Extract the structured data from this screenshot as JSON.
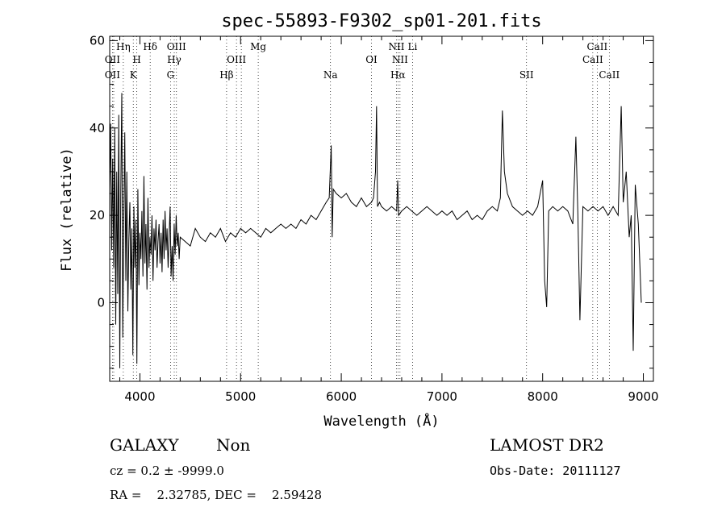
{
  "chart_data": {
    "type": "line",
    "title": "spec-55893-F9302_sp01-201.fits",
    "xlabel": "Wavelength (Å)",
    "ylabel": "Flux (relative)",
    "xlim": [
      3700,
      9100
    ],
    "ylim": [
      -18,
      61
    ],
    "xticks": [
      4000,
      5000,
      6000,
      7000,
      8000,
      9000
    ],
    "yticks": [
      0,
      20,
      40,
      60
    ],
    "grid": false,
    "series": [
      {
        "values": [
          [
            3700,
            26
          ],
          [
            3710,
            41
          ],
          [
            3720,
            12
          ],
          [
            3730,
            33
          ],
          [
            3740,
            8
          ],
          [
            3750,
            40
          ],
          [
            3760,
            -5
          ],
          [
            3770,
            30
          ],
          [
            3780,
            2
          ],
          [
            3790,
            43
          ],
          [
            3800,
            -15
          ],
          [
            3810,
            25
          ],
          [
            3820,
            48
          ],
          [
            3830,
            -8
          ],
          [
            3840,
            20
          ],
          [
            3850,
            39
          ],
          [
            3860,
            5
          ],
          [
            3870,
            30
          ],
          [
            3880,
            -2
          ],
          [
            3890,
            14
          ],
          [
            3900,
            23
          ],
          [
            3910,
            3
          ],
          [
            3920,
            17
          ],
          [
            3930,
            -12
          ],
          [
            3940,
            22
          ],
          [
            3950,
            8
          ],
          [
            3960,
            19
          ],
          [
            3970,
            -14
          ],
          [
            3980,
            26
          ],
          [
            3990,
            4
          ],
          [
            4000,
            16
          ],
          [
            4010,
            10
          ],
          [
            4020,
            21
          ],
          [
            4030,
            6
          ],
          [
            4040,
            29
          ],
          [
            4050,
            9
          ],
          [
            4060,
            18
          ],
          [
            4070,
            3
          ],
          [
            4080,
            24
          ],
          [
            4090,
            8
          ],
          [
            4100,
            15
          ],
          [
            4110,
            11
          ],
          [
            4120,
            20
          ],
          [
            4130,
            5
          ],
          [
            4140,
            17
          ],
          [
            4150,
            12
          ],
          [
            4160,
            19
          ],
          [
            4170,
            8
          ],
          [
            4180,
            14
          ],
          [
            4190,
            18
          ],
          [
            4200,
            9
          ],
          [
            4210,
            16
          ],
          [
            4220,
            7
          ],
          [
            4230,
            19
          ],
          [
            4240,
            10
          ],
          [
            4250,
            21
          ],
          [
            4260,
            12
          ],
          [
            4270,
            17
          ],
          [
            4280,
            8
          ],
          [
            4290,
            15
          ],
          [
            4300,
            22
          ],
          [
            4310,
            6
          ],
          [
            4320,
            13
          ],
          [
            4330,
            5
          ],
          [
            4340,
            18
          ],
          [
            4350,
            11
          ],
          [
            4360,
            20
          ],
          [
            4370,
            13
          ],
          [
            4380,
            16
          ],
          [
            4390,
            10
          ],
          [
            4400,
            15
          ],
          [
            4450,
            14
          ],
          [
            4500,
            13
          ],
          [
            4550,
            17
          ],
          [
            4600,
            15
          ],
          [
            4650,
            14
          ],
          [
            4700,
            16
          ],
          [
            4750,
            15
          ],
          [
            4800,
            17
          ],
          [
            4850,
            14
          ],
          [
            4900,
            16
          ],
          [
            4950,
            15
          ],
          [
            5000,
            17
          ],
          [
            5050,
            16
          ],
          [
            5100,
            17
          ],
          [
            5150,
            16
          ],
          [
            5200,
            15
          ],
          [
            5250,
            17
          ],
          [
            5300,
            16
          ],
          [
            5350,
            17
          ],
          [
            5400,
            18
          ],
          [
            5450,
            17
          ],
          [
            5500,
            18
          ],
          [
            5550,
            17
          ],
          [
            5600,
            19
          ],
          [
            5650,
            18
          ],
          [
            5700,
            20
          ],
          [
            5750,
            19
          ],
          [
            5800,
            21
          ],
          [
            5850,
            23
          ],
          [
            5880,
            24
          ],
          [
            5900,
            36
          ],
          [
            5910,
            15
          ],
          [
            5920,
            26
          ],
          [
            5950,
            25
          ],
          [
            6000,
            24
          ],
          [
            6050,
            25
          ],
          [
            6100,
            23
          ],
          [
            6150,
            22
          ],
          [
            6200,
            24
          ],
          [
            6250,
            22
          ],
          [
            6300,
            23
          ],
          [
            6320,
            24
          ],
          [
            6340,
            30
          ],
          [
            6350,
            45
          ],
          [
            6360,
            22
          ],
          [
            6380,
            23
          ],
          [
            6400,
            22
          ],
          [
            6450,
            21
          ],
          [
            6500,
            22
          ],
          [
            6550,
            21
          ],
          [
            6560,
            28
          ],
          [
            6570,
            20
          ],
          [
            6600,
            21
          ],
          [
            6650,
            22
          ],
          [
            6700,
            21
          ],
          [
            6750,
            20
          ],
          [
            6800,
            21
          ],
          [
            6850,
            22
          ],
          [
            6900,
            21
          ],
          [
            6950,
            20
          ],
          [
            7000,
            21
          ],
          [
            7050,
            20
          ],
          [
            7100,
            21
          ],
          [
            7150,
            19
          ],
          [
            7200,
            20
          ],
          [
            7250,
            21
          ],
          [
            7300,
            19
          ],
          [
            7350,
            20
          ],
          [
            7400,
            19
          ],
          [
            7450,
            21
          ],
          [
            7500,
            22
          ],
          [
            7550,
            21
          ],
          [
            7580,
            24
          ],
          [
            7600,
            44
          ],
          [
            7620,
            30
          ],
          [
            7650,
            25
          ],
          [
            7700,
            22
          ],
          [
            7750,
            21
          ],
          [
            7800,
            20
          ],
          [
            7850,
            21
          ],
          [
            7900,
            20
          ],
          [
            7950,
            22
          ],
          [
            8000,
            28
          ],
          [
            8020,
            5
          ],
          [
            8040,
            -1
          ],
          [
            8060,
            21
          ],
          [
            8100,
            22
          ],
          [
            8150,
            21
          ],
          [
            8200,
            22
          ],
          [
            8250,
            21
          ],
          [
            8300,
            18
          ],
          [
            8330,
            38
          ],
          [
            8350,
            20
          ],
          [
            8370,
            -4
          ],
          [
            8400,
            22
          ],
          [
            8450,
            21
          ],
          [
            8500,
            22
          ],
          [
            8550,
            21
          ],
          [
            8600,
            22
          ],
          [
            8650,
            20
          ],
          [
            8700,
            22
          ],
          [
            8750,
            20
          ],
          [
            8780,
            45
          ],
          [
            8800,
            23
          ],
          [
            8830,
            30
          ],
          [
            8860,
            15
          ],
          [
            8880,
            20
          ],
          [
            8900,
            -11
          ],
          [
            8920,
            27
          ],
          [
            8950,
            18
          ],
          [
            8980,
            0
          ]
        ]
      }
    ],
    "lines": [
      {
        "x": 3727,
        "labels": [
          {
            "row": 2,
            "text": "OII"
          },
          {
            "row": 3,
            "text": "OII"
          }
        ]
      },
      {
        "x": 3740,
        "labels": []
      },
      {
        "x": 3835,
        "labels": [
          {
            "row": 1,
            "text": "Hη"
          }
        ]
      },
      {
        "x": 3934,
        "labels": [
          {
            "row": 3,
            "text": "K"
          }
        ]
      },
      {
        "x": 3969,
        "labels": [
          {
            "row": 2,
            "text": "H"
          }
        ]
      },
      {
        "x": 4102,
        "labels": [
          {
            "row": 1,
            "text": "Hδ"
          }
        ]
      },
      {
        "x": 4304,
        "labels": [
          {
            "row": 3,
            "text": "G"
          }
        ]
      },
      {
        "x": 4341,
        "labels": [
          {
            "row": 2,
            "text": "Hγ"
          }
        ]
      },
      {
        "x": 4363,
        "labels": [
          {
            "row": 1,
            "text": "OIII"
          }
        ]
      },
      {
        "x": 4861,
        "labels": [
          {
            "row": 3,
            "text": "Hβ"
          }
        ]
      },
      {
        "x": 4959,
        "labels": [
          {
            "row": 2,
            "text": "OIII"
          }
        ]
      },
      {
        "x": 5007,
        "labels": []
      },
      {
        "x": 5175,
        "labels": [
          {
            "row": 1,
            "text": "Mg"
          }
        ]
      },
      {
        "x": 5893,
        "labels": [
          {
            "row": 3,
            "text": "Na"
          }
        ]
      },
      {
        "x": 6300,
        "labels": [
          {
            "row": 2,
            "text": "OI"
          }
        ]
      },
      {
        "x": 6548,
        "labels": [
          {
            "row": 1,
            "text": "NII"
          }
        ]
      },
      {
        "x": 6563,
        "labels": [
          {
            "row": 3,
            "text": "Hα"
          }
        ]
      },
      {
        "x": 6583,
        "labels": [
          {
            "row": 2,
            "text": "NII"
          }
        ]
      },
      {
        "x": 6708,
        "labels": [
          {
            "row": 1,
            "text": "Li"
          }
        ]
      },
      {
        "x": 7840,
        "labels": [
          {
            "row": 3,
            "text": "SII"
          }
        ]
      },
      {
        "x": 8498,
        "labels": [
          {
            "row": 2,
            "text": "CaII"
          }
        ]
      },
      {
        "x": 8542,
        "labels": [
          {
            "row": 1,
            "text": "CaII"
          }
        ]
      },
      {
        "x": 8662,
        "labels": [
          {
            "row": 3,
            "text": "CaII"
          }
        ]
      }
    ]
  },
  "info": {
    "class": "GALAXY",
    "subclass": "Non",
    "survey": "LAMOST DR2",
    "cz": "cz = 0.2 ± -9999.0",
    "obs_date": "Obs-Date: 20111127",
    "radec": "RA =    2.32785, DEC =    2.59428"
  }
}
